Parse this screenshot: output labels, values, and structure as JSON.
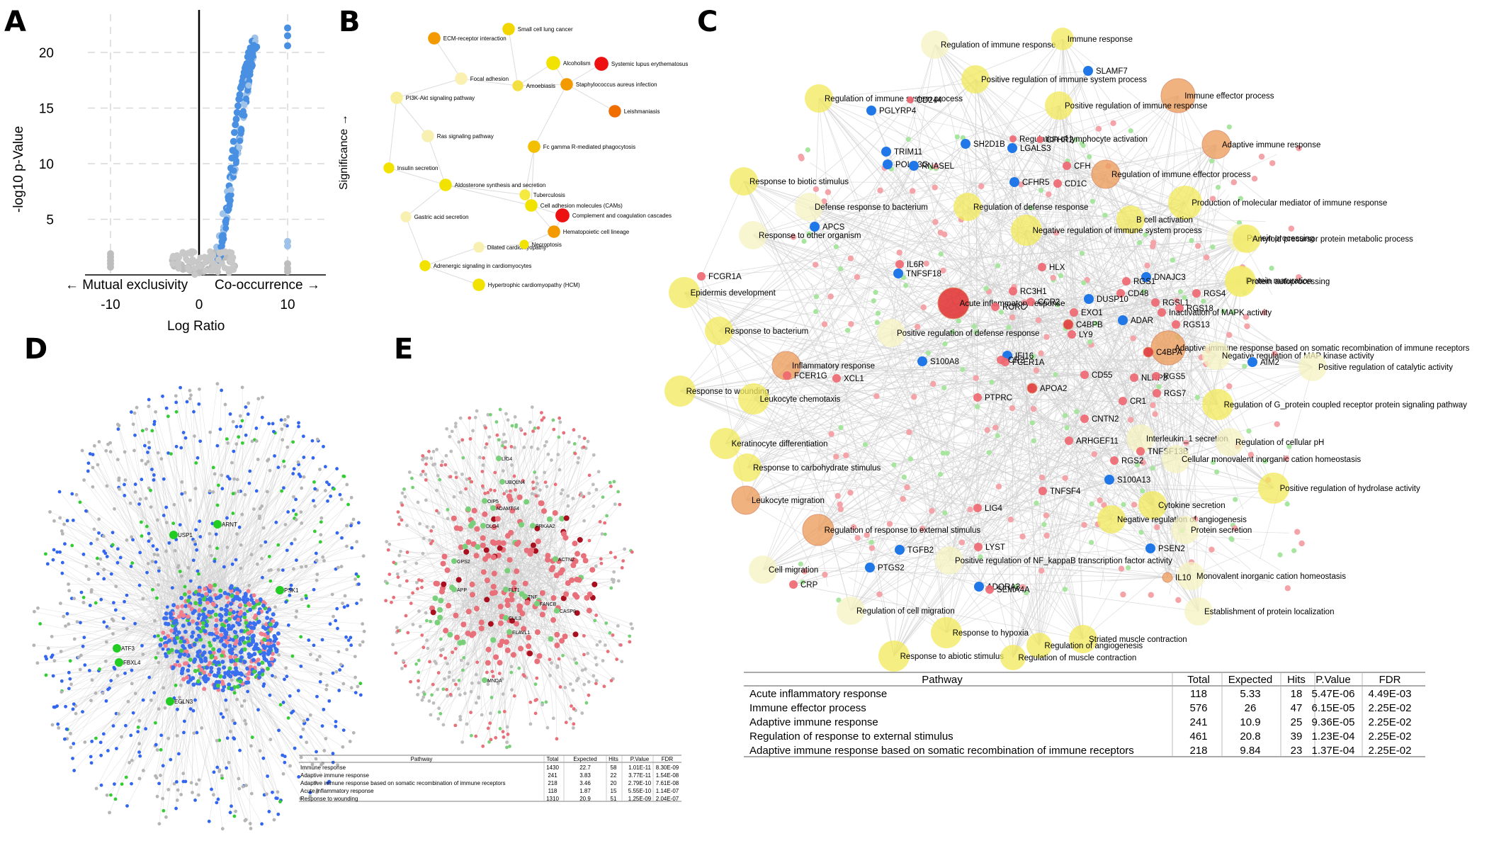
{
  "panel_labels": {
    "A": "A",
    "B": "B",
    "C": "C",
    "D": "D",
    "E": "E"
  },
  "panelA": {
    "ylabel": "-log10 p-Value",
    "xlabel": "Log Ratio",
    "left_arrow_label": "← Mutual exclusivity",
    "right_arrow_label": "Co-occurrence →",
    "yticks": [
      "5",
      "10",
      "15",
      "20"
    ],
    "xticks": [
      "-10",
      "0",
      "10"
    ]
  },
  "chart_data": {
    "type": "scatter",
    "xlabel": "Log Ratio",
    "ylabel": "-log10 p-Value",
    "xlim": [
      -14,
      14.5
    ],
    "ylim": [
      0,
      23
    ],
    "grid": true,
    "series": [
      {
        "name": "",
        "color": "#4a90e2",
        "x": [
          2.1,
          2.4,
          2.6,
          2.8,
          3.0,
          3.1,
          3.3,
          3.4,
          3.5,
          3.6,
          3.7,
          3.8,
          3.9,
          4.0,
          4.1,
          4.2,
          4.3,
          4.4,
          4.5,
          4.6,
          4.7,
          4.8,
          4.9,
          5.0,
          5.1,
          5.2,
          5.3,
          5.4,
          5.5,
          5.6,
          5.7,
          5.8,
          6.0,
          6.2,
          6.5,
          10.0,
          10.0,
          10.0
        ],
        "y": [
          1.5,
          2.0,
          3.0,
          4.0,
          4.8,
          6.0,
          7.0,
          8.0,
          8.8,
          9.6,
          10.5,
          11.2,
          12.0,
          12.8,
          13.5,
          14.0,
          14.6,
          15.2,
          15.8,
          16.2,
          16.8,
          17.0,
          17.4,
          17.8,
          18.2,
          18.6,
          18.8,
          19.0,
          19.6,
          20.0,
          19.8,
          20.4,
          21.0,
          20.3,
          20.5,
          22.2,
          21.5,
          20.6
        ]
      },
      {
        "name": "",
        "color": "#9fc2e8",
        "x": [
          2.0,
          2.3,
          2.7,
          3.2,
          3.6,
          4.1,
          4.6,
          5.2,
          5.7,
          6.3,
          10.0,
          10.0
        ],
        "y": [
          2.5,
          3.5,
          5.5,
          7.5,
          9.0,
          11.0,
          13.0,
          16.0,
          18.0,
          21.3,
          3.0,
          2.6
        ]
      },
      {
        "name": "",
        "color": "#bdbdbd",
        "x": [
          -10.0,
          -10.0,
          -10.0,
          -10.0,
          -10.0,
          -3.0,
          -2.5,
          -2.0,
          -1.5,
          -1.0,
          -0.5,
          0.0,
          0.5,
          1.0,
          1.5,
          2.0,
          2.5,
          3.0,
          3.5,
          4.0,
          -2.8,
          -1.8,
          -1.2,
          0.3,
          0.8,
          1.3,
          1.8,
          10.0,
          10.0,
          10.0
        ],
        "y": [
          1.9,
          1.6,
          1.3,
          1.0,
          0.7,
          1.3,
          1.1,
          0.9,
          0.6,
          0.4,
          0.3,
          0.2,
          0.3,
          0.5,
          0.8,
          1.0,
          1.3,
          1.6,
          1.2,
          0.8,
          0.8,
          0.5,
          0.7,
          0.9,
          1.2,
          1.6,
          2.0,
          1.0,
          0.6,
          0.3
        ]
      }
    ]
  },
  "panelB": {
    "ylabel": "Significance →",
    "nodes": [
      {
        "label": "Small cell lung cancer",
        "color": "#f2d600",
        "size": 8
      },
      {
        "label": "ECM-receptor interaction",
        "color": "#f29a00",
        "size": 8
      },
      {
        "label": "Alcoholism",
        "color": "#f2e200",
        "size": 9
      },
      {
        "label": "Systemic lupus erythematosus",
        "color": "#ee1111",
        "size": 9
      },
      {
        "label": "Focal adhesion",
        "color": "#faf0b0",
        "size": 8
      },
      {
        "label": "Amoebiasis",
        "color": "#f3e040",
        "size": 7
      },
      {
        "label": "Staphylococcus aureus infection",
        "color": "#f29a00",
        "size": 8
      },
      {
        "label": "PI3K-Akt signaling pathway",
        "color": "#f7ef9c",
        "size": 8
      },
      {
        "label": "Leishmaniasis",
        "color": "#f06d00",
        "size": 8
      },
      {
        "label": "Ras signaling pathway",
        "color": "#f7f0b0",
        "size": 8
      },
      {
        "label": "Fc gamma R-mediated phagocytosis",
        "color": "#f2c000",
        "size": 8
      },
      {
        "label": "Insulin secretion",
        "color": "#f2e200",
        "size": 7
      },
      {
        "label": "Aldosterone synthesis and secretion",
        "color": "#f2e200",
        "size": 8
      },
      {
        "label": "Tuberculosis",
        "color": "#f6ea40",
        "size": 7
      },
      {
        "label": "Cell adhesion molecules (CAMs)",
        "color": "#f2e200",
        "size": 8
      },
      {
        "label": "Complement and coagulation cascades",
        "color": "#ee1111",
        "size": 9
      },
      {
        "label": "Gastric acid secretion",
        "color": "#f7f0b0",
        "size": 7
      },
      {
        "label": "Hematopoietic cell lineage",
        "color": "#f29a00",
        "size": 8
      },
      {
        "label": "Dilated cardiomyopathy",
        "color": "#f7f0b0",
        "size": 7
      },
      {
        "label": "Necroptosis",
        "color": "#f2e200",
        "size": 6
      },
      {
        "label": "Adrenergic signaling in cardiomyocytes",
        "color": "#f2e200",
        "size": 7
      },
      {
        "label": "Hypertrophic cardiomyopathy (HCM)",
        "color": "#f2e200",
        "size": 8
      }
    ]
  },
  "panelC": {
    "terms": [
      "Regulation of immune response",
      "Immune response",
      "SLAMF7",
      "Positive regulation of immune system process",
      "Regulation of immune system process",
      "Immune effector process",
      "PGLYRP4",
      "CD244",
      "Positive regulation of immune response",
      "Adaptive immune response",
      "Regulation of lymphocyte activation",
      "SH2D1B",
      "CFHR2",
      "TRIM11",
      "LGALS3",
      "POLR3G",
      "RNASEL",
      "CFH",
      "Regulation of immune effector process",
      "Response to biotic stimulus",
      "CFHR5",
      "CD1C",
      "Production of molecular mediator of immune response",
      "Defense response to bacterium",
      "Regulation of defense response",
      "B cell activation",
      "APCS",
      "Negative regulation of immune system process",
      "Response to other organism",
      "Protein processing",
      "Amyloid precursor protein metabolic process",
      "IL6R",
      "TNFSF18",
      "HLX",
      "FCGR1A",
      "DNAJC3",
      "Protein maturation",
      "Protein autoprocessing",
      "RGS1",
      "Epidermis development",
      "RC3H1",
      "RGS4",
      "CD48",
      "Acute inflammatory response",
      "CCR2",
      "DUSP10",
      "RGSL1",
      "RORC",
      "EXO1",
      "RGS18",
      "Inactivation of MAPK activity",
      "ADAR",
      "RGS13",
      "C4BPB",
      "Response to bacterium",
      "LY9",
      "Positive regulation of defense response",
      "Adaptive immune response based on somatic recombination of immune receptors",
      "C4BPA",
      "Negative regulation of MAP kinase activity",
      "IFI16",
      "S100A8",
      "FCER1A",
      "CR2",
      "Inflammatory response",
      "AIM2",
      "Positive regulation of catalytic activity",
      "FCER1G",
      "XCL1",
      "CD55",
      "NLRP3",
      "RGS5",
      "Response to wounding",
      "APOA2",
      "RGS7",
      "Leukocyte chemotaxis",
      "CR1",
      "Regulation of G_protein coupled receptor protein signaling pathway",
      "PTPRC",
      "CNTN2",
      "Interleukin_1 secretion",
      "Keratinocyte differentiation",
      "ARHGEF11",
      "TNFSF13B",
      "Regulation of cellular pH",
      "RGS2",
      "Cellular monovalent inorganic cation homeostasis",
      "Response to carbohydrate stimulus",
      "S100A13",
      "TNFSF4",
      "Positive regulation of hydrolase activity",
      "Leukocyte migration",
      "LIG4",
      "Cytokine secretion",
      "Negative regulation of angiogenesis",
      "Regulation of response to external stimulus",
      "Protein secretion",
      "LYST",
      "TGFB2",
      "PSEN2",
      "Positive regulation of NF_kappaB transcription factor activity",
      "Cell migration",
      "PTGS2",
      "Monovalent inorganic cation homeostasis",
      "IL10",
      "CRP",
      "ADORA3",
      "SEMA4A",
      "Regulation of cell migration",
      "Establishment of protein localization",
      "Response to hypoxia",
      "Striated muscle contraction",
      "Regulation of angiogenesis",
      "Response to abiotic stimulus",
      "Regulation of muscle contraction"
    ],
    "table": {
      "headers": [
        "Pathway",
        "Total",
        "Expected",
        "Hits",
        "P.Value",
        "FDR"
      ],
      "rows": [
        [
          "Acute inflammatory response",
          "118",
          "5.33",
          "18",
          "5.47E-06",
          "4.49E-03"
        ],
        [
          "Immune effector process",
          "576",
          "26",
          "47",
          "6.15E-05",
          "2.25E-02"
        ],
        [
          "Adaptive immune response",
          "241",
          "10.9",
          "25",
          "9.36E-05",
          "2.25E-02"
        ],
        [
          "Regulation of response to external stimulus",
          "461",
          "20.8",
          "39",
          "1.23E-04",
          "2.25E-02"
        ],
        [
          "Adaptive immune response based on somatic recombination of immune receptors",
          "218",
          "9.84",
          "23",
          "1.37E-04",
          "2.25E-02"
        ]
      ]
    }
  },
  "panelD": {
    "hubs": [
      "ARNT",
      "USP1",
      "PSK1",
      "ATF3",
      "EGLN3",
      "FBXL4"
    ]
  },
  "panelE": {
    "labels": [
      "LIG4",
      "UBQLN4",
      "OIP5",
      "ADAMTS4",
      "PRKAA2",
      "DLG4",
      "GPS2",
      "ACTN2",
      "APP",
      "FLT1",
      "TNF",
      "FANCB",
      "CUL3",
      "CASP8",
      "ELAVL1",
      "MNDA"
    ],
    "table": {
      "headers": [
        "Pathway",
        "Total",
        "Expected",
        "Hits",
        "P.Value",
        "FDR"
      ],
      "rows": [
        [
          "Immune response",
          "1430",
          "22.7",
          "58",
          "1.01E-11",
          "8.30E-09"
        ],
        [
          "Adaptive immune response",
          "241",
          "3.83",
          "22",
          "3.77E-11",
          "1.54E-08"
        ],
        [
          "Adaptive immune response based on somatic recombination of immune receptors",
          "218",
          "3.46",
          "20",
          "2.79E-10",
          "7.61E-08"
        ],
        [
          "Acute inflammatory response",
          "118",
          "1.87",
          "15",
          "5.55E-10",
          "1.14E-07"
        ],
        [
          "Response to wounding",
          "1310",
          "20.9",
          "51",
          "1.25E-09",
          "2.04E-07"
        ]
      ]
    }
  }
}
